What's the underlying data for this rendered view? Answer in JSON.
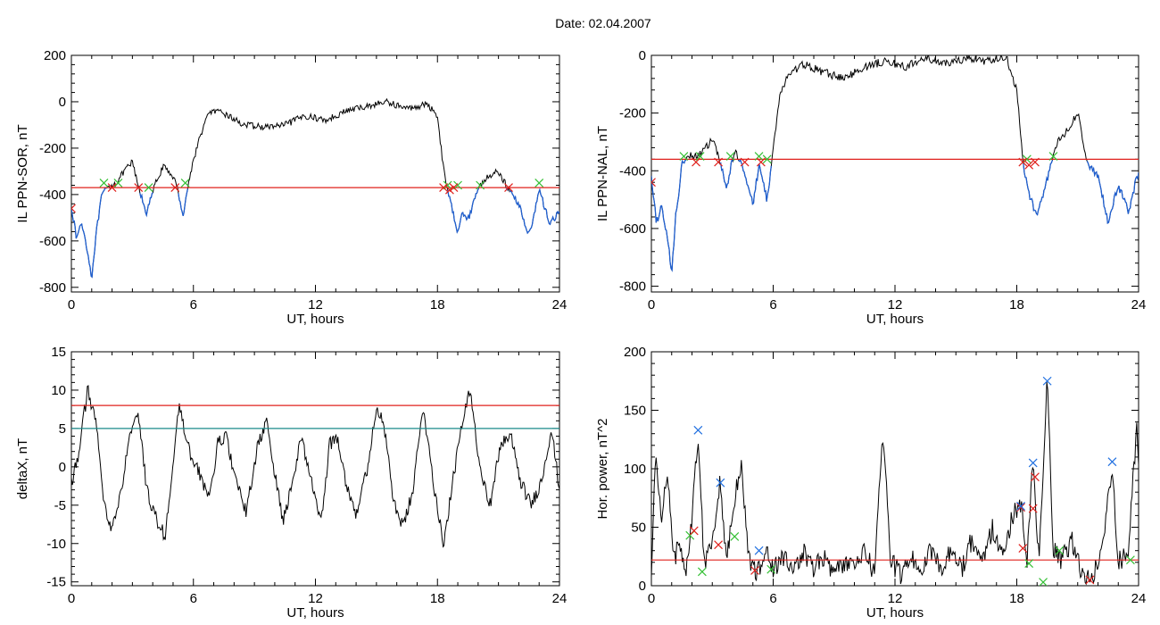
{
  "title": "Date:  02.04.2007",
  "colors": {
    "trace": "#000000",
    "highlight": "#1f5fd0",
    "red_line": "#e0201c",
    "teal_line": "#1a8a8a",
    "marker_red": "#e0201c",
    "marker_green": "#35c035",
    "marker_blue": "#1f6fe0"
  },
  "chart_data": [
    {
      "type": "line",
      "ylabel": "IL PPN-SOR, nT",
      "xlabel": "UT, hours",
      "xlim": [
        0,
        24
      ],
      "ylim": [
        -820,
        200
      ],
      "xticks": [
        0,
        6,
        12,
        18,
        24
      ],
      "yticks": [
        -800,
        -600,
        -400,
        -200,
        0,
        200
      ],
      "threshold": -370,
      "profile": [
        [
          0,
          -450
        ],
        [
          0.25,
          -590
        ],
        [
          0.5,
          -520
        ],
        [
          0.75,
          -620
        ],
        [
          1.0,
          -760
        ],
        [
          1.2,
          -580
        ],
        [
          1.5,
          -400
        ],
        [
          1.8,
          -370
        ],
        [
          2.2,
          -350
        ],
        [
          2.6,
          -300
        ],
        [
          3.0,
          -260
        ],
        [
          3.3,
          -370
        ],
        [
          3.7,
          -480
        ],
        [
          4.1,
          -360
        ],
        [
          4.5,
          -280
        ],
        [
          5.0,
          -320
        ],
        [
          5.2,
          -370
        ],
        [
          5.5,
          -490
        ],
        [
          5.7,
          -380
        ],
        [
          6.0,
          -250
        ],
        [
          6.4,
          -130
        ],
        [
          6.8,
          -40
        ],
        [
          7.5,
          -50
        ],
        [
          8.5,
          -100
        ],
        [
          9.5,
          -110
        ],
        [
          10.5,
          -100
        ],
        [
          11.5,
          -60
        ],
        [
          12.5,
          -80
        ],
        [
          13.5,
          -40
        ],
        [
          14.5,
          -20
        ],
        [
          15.5,
          0
        ],
        [
          16.5,
          -30
        ],
        [
          17.5,
          -10
        ],
        [
          18.0,
          -60
        ],
        [
          18.3,
          -290
        ],
        [
          18.6,
          -420
        ],
        [
          19.0,
          -560
        ],
        [
          19.2,
          -470
        ],
        [
          19.5,
          -510
        ],
        [
          20.0,
          -370
        ],
        [
          20.5,
          -320
        ],
        [
          21.0,
          -300
        ],
        [
          21.5,
          -380
        ],
        [
          22.0,
          -440
        ],
        [
          22.5,
          -580
        ],
        [
          23.0,
          -380
        ],
        [
          23.5,
          -520
        ],
        [
          24.0,
          -480
        ]
      ],
      "red_markers": [
        [
          0,
          -460
        ],
        [
          2.0,
          -370
        ],
        [
          3.3,
          -370
        ],
        [
          5.1,
          -370
        ],
        [
          18.3,
          -370
        ],
        [
          18.6,
          -380
        ],
        [
          18.8,
          -370
        ],
        [
          21.5,
          -370
        ]
      ],
      "green_markers": [
        [
          1.6,
          -350
        ],
        [
          2.3,
          -350
        ],
        [
          3.8,
          -370
        ],
        [
          5.6,
          -350
        ],
        [
          18.5,
          -360
        ],
        [
          19.0,
          -360
        ],
        [
          20.1,
          -360
        ],
        [
          23.0,
          -350
        ]
      ]
    },
    {
      "type": "line",
      "ylabel": "IL PPN-NAL, nT",
      "xlabel": "UT, hours",
      "xlim": [
        0,
        24
      ],
      "ylim": [
        -820,
        0
      ],
      "xticks": [
        0,
        6,
        12,
        18,
        24
      ],
      "yticks": [
        -800,
        -600,
        -400,
        -200,
        0
      ],
      "threshold": -360,
      "profile": [
        [
          0,
          -430
        ],
        [
          0.25,
          -580
        ],
        [
          0.5,
          -520
        ],
        [
          0.75,
          -620
        ],
        [
          1.0,
          -750
        ],
        [
          1.2,
          -560
        ],
        [
          1.5,
          -380
        ],
        [
          1.8,
          -340
        ],
        [
          2.2,
          -350
        ],
        [
          2.6,
          -330
        ],
        [
          3.0,
          -290
        ],
        [
          3.3,
          -350
        ],
        [
          3.7,
          -460
        ],
        [
          4.1,
          -330
        ],
        [
          4.5,
          -380
        ],
        [
          5.0,
          -520
        ],
        [
          5.3,
          -380
        ],
        [
          5.7,
          -500
        ],
        [
          6.0,
          -330
        ],
        [
          6.3,
          -150
        ],
        [
          6.7,
          -70
        ],
        [
          7.5,
          -30
        ],
        [
          8.5,
          -60
        ],
        [
          9.5,
          -80
        ],
        [
          10.5,
          -40
        ],
        [
          11.5,
          -20
        ],
        [
          12.5,
          -40
        ],
        [
          13.5,
          -10
        ],
        [
          14.5,
          -30
        ],
        [
          15.5,
          -10
        ],
        [
          16.5,
          -20
        ],
        [
          17.5,
          -10
        ],
        [
          18.0,
          -120
        ],
        [
          18.3,
          -370
        ],
        [
          18.6,
          -480
        ],
        [
          19.0,
          -560
        ],
        [
          19.3,
          -480
        ],
        [
          19.6,
          -400
        ],
        [
          20.0,
          -300
        ],
        [
          20.5,
          -260
        ],
        [
          21.0,
          -200
        ],
        [
          21.5,
          -380
        ],
        [
          22.0,
          -420
        ],
        [
          22.5,
          -580
        ],
        [
          23.0,
          -450
        ],
        [
          23.5,
          -540
        ],
        [
          24.0,
          -400
        ]
      ],
      "red_markers": [
        [
          0,
          -440
        ],
        [
          2.2,
          -370
        ],
        [
          3.3,
          -370
        ],
        [
          4.6,
          -370
        ],
        [
          5.4,
          -370
        ],
        [
          18.3,
          -370
        ],
        [
          18.6,
          -380
        ],
        [
          18.9,
          -370
        ]
      ],
      "green_markers": [
        [
          1.6,
          -350
        ],
        [
          2.4,
          -350
        ],
        [
          3.9,
          -350
        ],
        [
          5.3,
          -350
        ],
        [
          5.7,
          -360
        ],
        [
          18.5,
          -360
        ],
        [
          19.8,
          -350
        ]
      ]
    },
    {
      "type": "line",
      "ylabel": "deltaX, nT",
      "xlabel": "UT, hours",
      "xlim": [
        0,
        24
      ],
      "ylim": [
        -15.5,
        15
      ],
      "xticks": [
        0,
        6,
        12,
        18,
        24
      ],
      "yticks": [
        -15,
        -10,
        -5,
        0,
        5,
        10,
        15
      ],
      "threshold_high": 8,
      "threshold_mid": 5,
      "profile": [
        [
          0,
          -2
        ],
        [
          0.3,
          1
        ],
        [
          0.8,
          10
        ],
        [
          1.2,
          6
        ],
        [
          1.6,
          -5
        ],
        [
          2.0,
          -8
        ],
        [
          2.4,
          -4
        ],
        [
          2.8,
          3
        ],
        [
          3.3,
          7
        ],
        [
          3.7,
          -3
        ],
        [
          4.2,
          -7
        ],
        [
          4.6,
          -9
        ],
        [
          5.0,
          0
        ],
        [
          5.3,
          8
        ],
        [
          5.8,
          2
        ],
        [
          6.3,
          -1
        ],
        [
          6.8,
          -4
        ],
        [
          7.2,
          3
        ],
        [
          7.6,
          4
        ],
        [
          8.1,
          -2
        ],
        [
          8.6,
          -6
        ],
        [
          9.1,
          2
        ],
        [
          9.6,
          6
        ],
        [
          10.0,
          -1
        ],
        [
          10.4,
          -7
        ],
        [
          10.8,
          -3
        ],
        [
          11.3,
          4
        ],
        [
          11.8,
          -2
        ],
        [
          12.3,
          -7
        ],
        [
          12.7,
          3
        ],
        [
          13.1,
          4
        ],
        [
          13.5,
          -2
        ],
        [
          14.0,
          -6
        ],
        [
          14.5,
          -1
        ],
        [
          15.0,
          8
        ],
        [
          15.4,
          5
        ],
        [
          15.8,
          -4
        ],
        [
          16.3,
          -8
        ],
        [
          16.8,
          -3
        ],
        [
          17.3,
          8
        ],
        [
          17.8,
          -2
        ],
        [
          18.3,
          -10
        ],
        [
          18.7,
          -3
        ],
        [
          19.1,
          4
        ],
        [
          19.6,
          10
        ],
        [
          20.1,
          0
        ],
        [
          20.6,
          -5
        ],
        [
          21.1,
          3
        ],
        [
          21.6,
          4
        ],
        [
          22.1,
          -2
        ],
        [
          22.6,
          -5
        ],
        [
          23.1,
          -2
        ],
        [
          23.6,
          5
        ],
        [
          24.0,
          -3
        ]
      ]
    },
    {
      "type": "line",
      "ylabel": "Hor. power, nT^2",
      "xlabel": "UT, hours",
      "xlim": [
        0,
        24
      ],
      "ylim": [
        0,
        200
      ],
      "xticks": [
        0,
        6,
        12,
        18,
        24
      ],
      "yticks": [
        0,
        50,
        100,
        150,
        200
      ],
      "threshold": 22,
      "profile": [
        [
          0,
          5
        ],
        [
          0.2,
          110
        ],
        [
          0.5,
          60
        ],
        [
          0.8,
          100
        ],
        [
          1.1,
          20
        ],
        [
          1.4,
          40
        ],
        [
          1.7,
          10
        ],
        [
          2.0,
          60
        ],
        [
          2.3,
          130
        ],
        [
          2.6,
          20
        ],
        [
          3.0,
          40
        ],
        [
          3.4,
          90
        ],
        [
          3.7,
          20
        ],
        [
          4.0,
          60
        ],
        [
          4.4,
          105
        ],
        [
          4.8,
          25
        ],
        [
          5.2,
          10
        ],
        [
          5.6,
          30
        ],
        [
          6.0,
          15
        ],
        [
          6.5,
          25
        ],
        [
          7.0,
          10
        ],
        [
          7.5,
          30
        ],
        [
          8.0,
          15
        ],
        [
          8.5,
          25
        ],
        [
          9.0,
          10
        ],
        [
          9.5,
          20
        ],
        [
          10.0,
          15
        ],
        [
          10.5,
          30
        ],
        [
          11.0,
          10
        ],
        [
          11.4,
          130
        ],
        [
          11.8,
          20
        ],
        [
          12.3,
          10
        ],
        [
          12.8,
          25
        ],
        [
          13.3,
          15
        ],
        [
          13.8,
          30
        ],
        [
          14.3,
          10
        ],
        [
          14.8,
          35
        ],
        [
          15.3,
          15
        ],
        [
          15.8,
          40
        ],
        [
          16.3,
          20
        ],
        [
          16.8,
          50
        ],
        [
          17.3,
          25
        ],
        [
          17.8,
          60
        ],
        [
          18.2,
          70
        ],
        [
          18.5,
          20
        ],
        [
          18.8,
          105
        ],
        [
          19.1,
          20
        ],
        [
          19.5,
          175
        ],
        [
          19.8,
          30
        ],
        [
          20.2,
          20
        ],
        [
          20.7,
          40
        ],
        [
          21.2,
          10
        ],
        [
          21.7,
          5
        ],
        [
          22.2,
          30
        ],
        [
          22.7,
          105
        ],
        [
          23.0,
          20
        ],
        [
          23.5,
          30
        ],
        [
          23.9,
          135
        ],
        [
          24.0,
          100
        ]
      ],
      "blue_markers": [
        [
          2.3,
          133
        ],
        [
          3.4,
          88
        ],
        [
          5.3,
          30
        ],
        [
          18.2,
          68
        ],
        [
          18.8,
          105
        ],
        [
          19.5,
          175
        ],
        [
          22.7,
          106
        ]
      ],
      "red_markers": [
        [
          2.1,
          47
        ],
        [
          3.3,
          35
        ],
        [
          5.1,
          13
        ],
        [
          18.2,
          67
        ],
        [
          18.3,
          32
        ],
        [
          18.8,
          66
        ],
        [
          18.9,
          93
        ],
        [
          21.6,
          5
        ]
      ],
      "green_markers": [
        [
          1.9,
          43
        ],
        [
          2.5,
          12
        ],
        [
          4.1,
          42
        ],
        [
          5.9,
          14
        ],
        [
          18.6,
          19
        ],
        [
          19.3,
          3
        ],
        [
          20.1,
          30
        ],
        [
          23.6,
          22
        ]
      ]
    }
  ]
}
